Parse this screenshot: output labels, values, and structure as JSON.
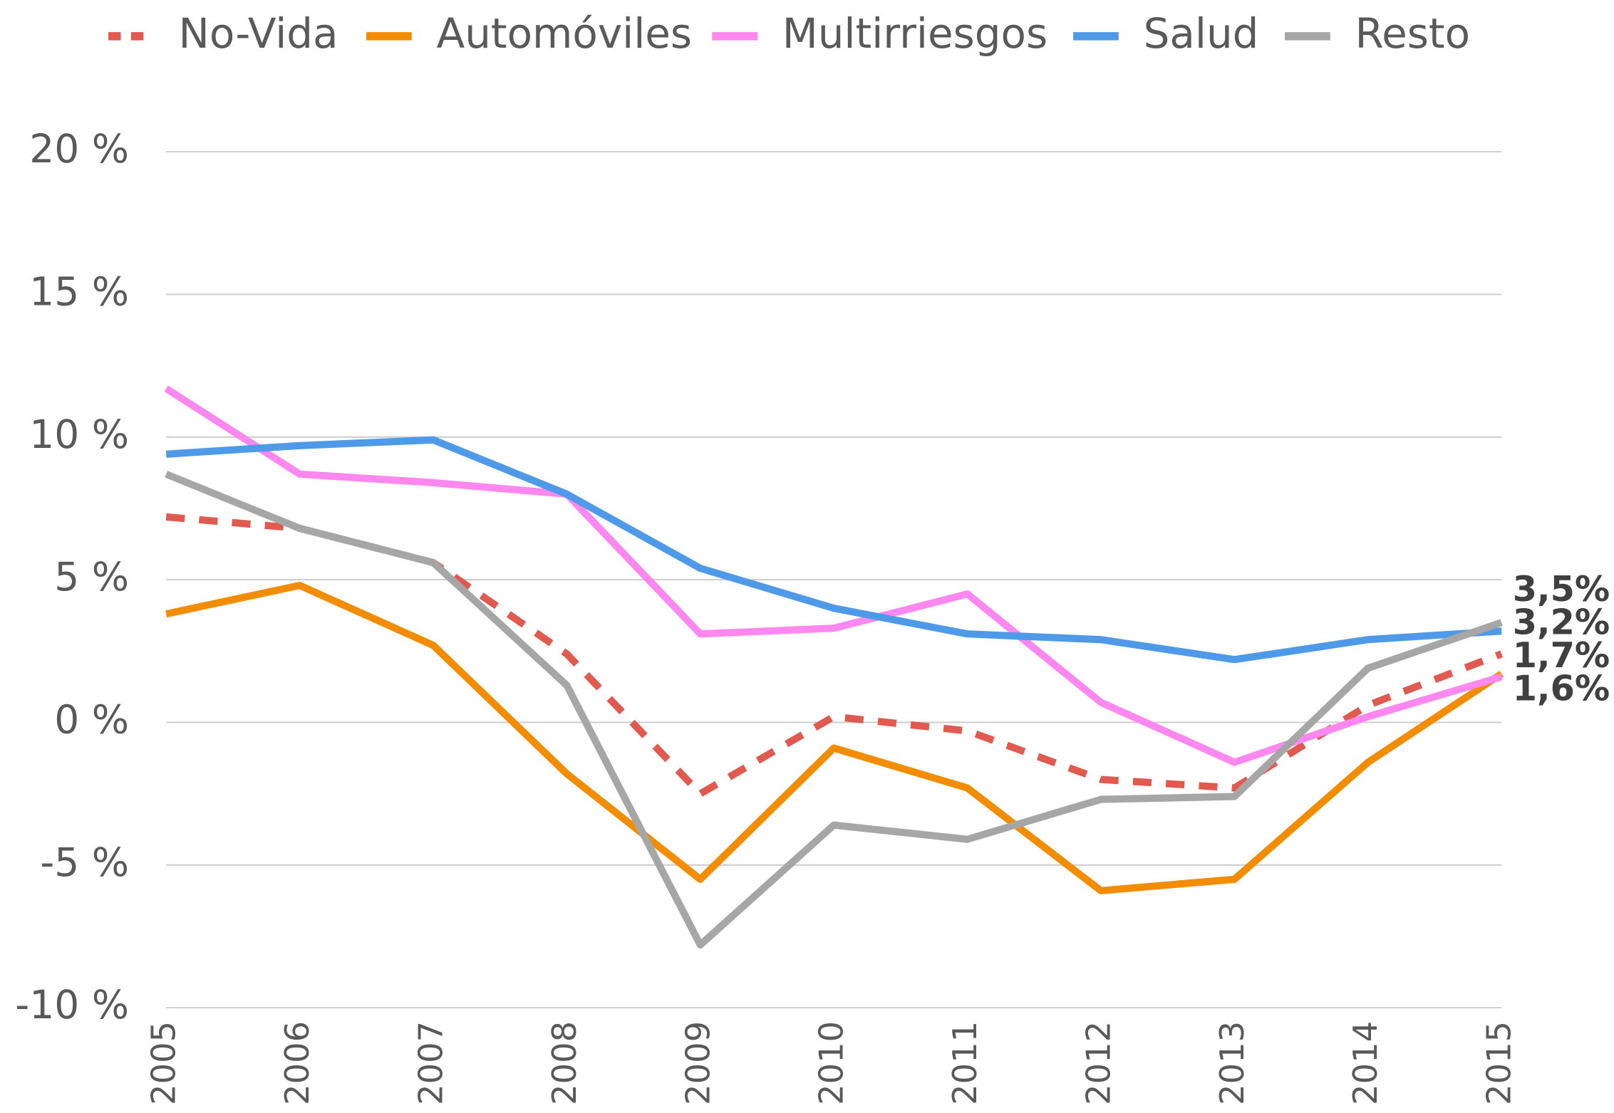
{
  "chart_data": {
    "type": "line",
    "categories": [
      "2005",
      "2006",
      "2007",
      "2008",
      "2009",
      "2010",
      "2011",
      "2012",
      "2013",
      "2014",
      "2015"
    ],
    "series": [
      {
        "name": "No-Vida",
        "color": "#e05a50",
        "dashed": true,
        "values": [
          7.2,
          6.8,
          5.6,
          2.4,
          -2.5,
          0.2,
          -0.3,
          -2.0,
          -2.3,
          0.6,
          2.4
        ]
      },
      {
        "name": "Automóviles",
        "color": "#f28c00",
        "values": [
          3.8,
          4.8,
          2.7,
          -1.8,
          -5.5,
          -0.9,
          -2.3,
          -5.9,
          -5.5,
          -1.4,
          1.7
        ],
        "value_labels": [
          null,
          null,
          null,
          null,
          null,
          null,
          null,
          null,
          null,
          null,
          "1,7%"
        ]
      },
      {
        "name": "Multirriesgos",
        "color": "#ff88f0",
        "values": [
          11.7,
          8.7,
          8.4,
          8.0,
          3.1,
          3.3,
          4.5,
          0.7,
          -1.4,
          0.2,
          1.6
        ],
        "value_labels": [
          null,
          null,
          null,
          null,
          null,
          null,
          null,
          null,
          null,
          null,
          "1,6%"
        ]
      },
      {
        "name": "Salud",
        "color": "#4f9ae8",
        "values": [
          9.4,
          9.7,
          9.9,
          8.0,
          5.4,
          4.0,
          3.1,
          2.9,
          2.2,
          2.9,
          3.2
        ],
        "value_labels": [
          null,
          null,
          null,
          null,
          null,
          null,
          null,
          null,
          null,
          null,
          "3,2%"
        ]
      },
      {
        "name": "Resto",
        "color": "#a6a6a6",
        "values": [
          8.7,
          6.8,
          5.6,
          1.3,
          -7.8,
          -3.6,
          -4.1,
          -2.7,
          -2.6,
          1.9,
          3.5
        ],
        "value_labels": [
          null,
          null,
          null,
          null,
          null,
          null,
          null,
          null,
          null,
          null,
          "3,5%"
        ]
      }
    ],
    "ylim": [
      -10,
      20
    ],
    "yticks": [
      {
        "value": -10,
        "label": "-10 %"
      },
      {
        "value": -5,
        "label": "-5 %"
      },
      {
        "value": 0,
        "label": "0 %"
      },
      {
        "value": 5,
        "label": "5 %"
      },
      {
        "value": 10,
        "label": "10 %"
      },
      {
        "value": 15,
        "label": "15 %"
      },
      {
        "value": 20,
        "label": "20 %"
      }
    ],
    "grid": true,
    "legend": "top"
  }
}
